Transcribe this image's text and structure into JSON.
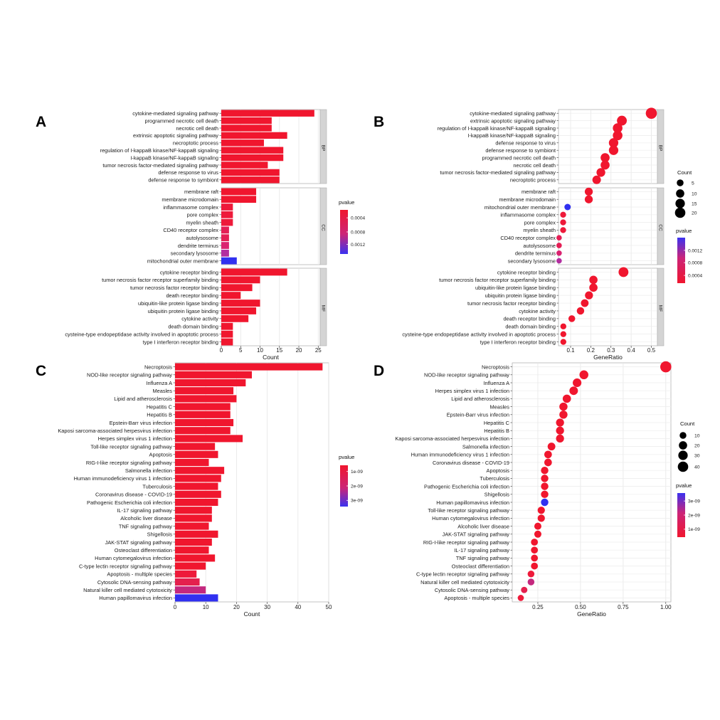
{
  "chart_data": [
    {
      "panel": "A",
      "type": "bar",
      "orientation": "horizontal",
      "xlabel": "Count",
      "xlim": [
        0,
        25.5
      ],
      "xticks": [
        0,
        5,
        10,
        15,
        20,
        25
      ],
      "legend": {
        "title": "pvalue",
        "labels": [
          "0.0004",
          "0.0008",
          "0.0012"
        ],
        "position": "right"
      },
      "facets": [
        {
          "name": "BP",
          "categories": [
            "cytokine-mediated signaling pathway",
            "programmed necrotic cell death",
            "necrotic cell death",
            "extrinsic apoptotic signaling pathway",
            "necroptotic process",
            "regulation of I-kappaB kinase/NF-kappaB signaling",
            "I-kappaB kinase/NF-kappaB signaling",
            "tumor necrosis factor-mediated signaling pathway",
            "defense response to virus",
            "defense response to symbiont"
          ],
          "values": [
            24,
            13,
            13,
            17,
            11,
            16,
            16,
            12,
            15,
            15
          ],
          "color": [
            "#f0162e",
            "#f0162e",
            "#f0162e",
            "#f0162e",
            "#f0162e",
            "#f0162e",
            "#f0162e",
            "#f0162e",
            "#f0162e",
            "#f0162e"
          ]
        },
        {
          "name": "CC",
          "categories": [
            "membrane raft",
            "membrane microdomain",
            "inflammasome complex",
            "pore complex",
            "myelin sheath",
            "CD40 receptor complex",
            "autolysosome",
            "dendrite terminus",
            "secondary lysosome",
            "mitochondrial outer membrane"
          ],
          "values": [
            9,
            9,
            3,
            3,
            3,
            2,
            2,
            2,
            2,
            4
          ],
          "color": [
            "#f0162e",
            "#f0162e",
            "#ee1a3a",
            "#ee1a3a",
            "#ee1a3a",
            "#e41e55",
            "#e41e55",
            "#da2270",
            "#b22da0",
            "#3030f0"
          ]
        },
        {
          "name": "MF",
          "categories": [
            "cytokine receptor binding",
            "tumor necrosis factor receptor superfamily binding",
            "tumor necrosis factor receptor binding",
            "death receptor binding",
            "ubiquitin-like protein ligase binding",
            "ubiquitin protein ligase binding",
            "cytokine activity",
            "death domain binding",
            "cysteine-type endopeptidase activity involved in apoptotic process",
            "type I interferon receptor binding"
          ],
          "values": [
            17,
            10,
            8,
            5,
            10,
            9,
            7,
            3,
            3,
            3
          ],
          "color": [
            "#f0162e",
            "#f0162e",
            "#f0162e",
            "#f0162e",
            "#f0162e",
            "#f0162e",
            "#f0162e",
            "#f0162e",
            "#f0162e",
            "#f0162e"
          ]
        }
      ]
    },
    {
      "panel": "B",
      "type": "scatter",
      "xlabel": "GeneRatio",
      "xlim": [
        0.04,
        0.53
      ],
      "xticks": [
        0.1,
        0.2,
        0.3,
        0.4,
        0.5
      ],
      "xticklabels": [
        "0.1",
        "0.2",
        "0.3",
        "0.4",
        "0.5"
      ],
      "size_legend": {
        "title": "Count",
        "labels": [
          "5",
          "10",
          "15",
          "20"
        ]
      },
      "color_legend": {
        "title": "pvalue",
        "labels": [
          "0.0012",
          "0.0008",
          "0.0004"
        ]
      },
      "facets": [
        {
          "name": "BP",
          "categories": [
            "cytokine-mediated signaling pathway",
            "extrinsic apoptotic signaling pathway",
            "regulation of I-kappaB kinase/NF-kappaB signaling",
            "I-kappaB kinase/NF-kappaB signaling",
            "defense response to virus",
            "defense response to symbiont",
            "programmed necrotic cell death",
            "necrotic cell death",
            "tumor necrosis factor-mediated signaling pathway",
            "necroptotic process"
          ],
          "values": [
            0.5,
            0.354,
            0.333,
            0.333,
            0.313,
            0.313,
            0.271,
            0.271,
            0.25,
            0.229
          ],
          "counts": [
            24,
            17,
            16,
            16,
            15,
            15,
            13,
            13,
            12,
            11
          ],
          "color": [
            "#f0162e",
            "#f0162e",
            "#f0162e",
            "#f0162e",
            "#f0162e",
            "#f0162e",
            "#f0162e",
            "#f0162e",
            "#f0162e",
            "#f0162e"
          ]
        },
        {
          "name": "CC",
          "categories": [
            "membrane raft",
            "membrane microdomain",
            "mitochondrial outer membrane",
            "inflammasome complex",
            "pore complex",
            "myelin sheath",
            "CD40 receptor complex",
            "autolysosome",
            "dendrite terminus",
            "secondary lysosome"
          ],
          "values": [
            0.19,
            0.19,
            0.085,
            0.063,
            0.063,
            0.063,
            0.043,
            0.043,
            0.043,
            0.043
          ],
          "counts": [
            9,
            9,
            4,
            3,
            3,
            3,
            2,
            2,
            2,
            2
          ],
          "color": [
            "#f0162e",
            "#f0162e",
            "#3030f0",
            "#ee1a3a",
            "#ee1a3a",
            "#ee1a3a",
            "#e41e55",
            "#e41e55",
            "#da2270",
            "#b22da0"
          ]
        },
        {
          "name": "MF",
          "categories": [
            "cytokine receptor binding",
            "tumor necrosis factor receptor superfamily binding",
            "ubiquitin-like protein ligase binding",
            "ubiquitin protein ligase binding",
            "tumor necrosis factor receptor binding",
            "cytokine activity",
            "death receptor binding",
            "death domain binding",
            "cysteine-type endopeptidase activity involved in apoptotic process",
            "type I interferon receptor binding"
          ],
          "values": [
            0.362,
            0.213,
            0.213,
            0.191,
            0.17,
            0.149,
            0.106,
            0.064,
            0.064,
            0.064
          ],
          "counts": [
            17,
            10,
            10,
            9,
            8,
            7,
            5,
            3,
            3,
            3
          ],
          "color": [
            "#f0162e",
            "#f0162e",
            "#f0162e",
            "#f0162e",
            "#f0162e",
            "#f0162e",
            "#f0162e",
            "#f0162e",
            "#f0162e",
            "#f0162e"
          ]
        }
      ]
    },
    {
      "panel": "C",
      "type": "bar",
      "orientation": "horizontal",
      "xlabel": "Count",
      "xlim": [
        0,
        50
      ],
      "xticks": [
        0,
        10,
        20,
        30,
        40,
        50
      ],
      "legend": {
        "title": "pvalue",
        "labels": [
          "1e-09",
          "2e-09",
          "3e-09"
        ],
        "position": "right"
      },
      "facets": [
        {
          "name": "",
          "categories": [
            "Necroptosis",
            "NOD-like receptor signaling pathway",
            "Influenza A",
            "Measles",
            "Lipid and atherosclerosis",
            "Hepatitis C",
            "Hepatitis B",
            "Epstein-Barr virus infection",
            "Kaposi sarcoma-associated herpesvirus infection",
            "Herpes simplex virus 1 infection",
            "Toll-like receptor signaling pathway",
            "Apoptosis",
            "RIG-I-like receptor signaling pathway",
            "Salmonella infection",
            "Human immunodeficiency virus 1 infection",
            "Tuberculosis",
            "Coronavirus disease - COVID-19",
            "Pathogenic Escherichia coli infection",
            "IL-17 signaling pathway",
            "Alcoholic liver disease",
            "TNF signaling pathway",
            "Shigellosis",
            "JAK-STAT signaling pathway",
            "Osteoclast differentiation",
            "Human cytomegalovirus infection",
            "C-type lectin receptor signaling pathway",
            "Apoptosis - multiple species",
            "Cytosolic DNA-sensing pathway",
            "Natural killer cell mediated cytotoxicity",
            "Human papillomavirus infection"
          ],
          "values": [
            48,
            25,
            23,
            19,
            20,
            18,
            18,
            19,
            18,
            22,
            13,
            14,
            11,
            16,
            15,
            14,
            15,
            14,
            12,
            12,
            11,
            14,
            12,
            11,
            13,
            10,
            7,
            8,
            10,
            14
          ],
          "color": [
            "#f0162e",
            "#f0162e",
            "#f0162e",
            "#f0162e",
            "#f0162e",
            "#f0162e",
            "#f0162e",
            "#f0162e",
            "#f0162e",
            "#f0162e",
            "#f0162e",
            "#f0162e",
            "#f0162e",
            "#f0162e",
            "#f0162e",
            "#f0162e",
            "#f0162e",
            "#f0162e",
            "#f0162e",
            "#f0162e",
            "#f0162e",
            "#f0162e",
            "#f0162e",
            "#f0162e",
            "#f0162e",
            "#f0162e",
            "#ee1a3a",
            "#e4204e",
            "#c4287e",
            "#3030f0"
          ]
        }
      ]
    },
    {
      "panel": "D",
      "type": "scatter",
      "xlabel": "GeneRatio",
      "xlim": [
        0.1,
        1.03
      ],
      "xticks": [
        0.25,
        0.5,
        0.75,
        1.0
      ],
      "xticklabels": [
        "0.25",
        "0.50",
        "0.75",
        "1.00"
      ],
      "size_legend": {
        "title": "Count",
        "labels": [
          "10",
          "20",
          "30",
          "40"
        ]
      },
      "color_legend": {
        "title": "pvalue",
        "labels": [
          "3e-09",
          "2e-09",
          "1e-09"
        ]
      },
      "facets": [
        {
          "name": "",
          "categories": [
            "Necroptosis",
            "NOD-like receptor signaling pathway",
            "Influenza A",
            "Herpes simplex virus 1 infection",
            "Lipid and atherosclerosis",
            "Measles",
            "Epstein-Barr virus infection",
            "Hepatitis C",
            "Hepatitis B",
            "Kaposi sarcoma-associated herpesvirus infection",
            "Salmonella infection",
            "Human immunodeficiency virus 1 infection",
            "Coronavirus disease - COVID-19",
            "Apoptosis",
            "Tuberculosis",
            "Pathogenic Escherichia coli infection",
            "Shigellosis",
            "Human papillomavirus infection",
            "Toll-like receptor signaling pathway",
            "Human cytomegalovirus infection",
            "Alcoholic liver disease",
            "JAK-STAT signaling pathway",
            "RIG-I-like receptor signaling pathway",
            "IL-17 signaling pathway",
            "TNF signaling pathway",
            "Osteoclast differentiation",
            "C-type lectin receptor signaling pathway",
            "Natural killer cell mediated cytotoxicity",
            "Cytosolic DNA-sensing pathway",
            "Apoptosis - multiple species"
          ],
          "values": [
            1.0,
            0.52,
            0.48,
            0.46,
            0.42,
            0.4,
            0.4,
            0.38,
            0.38,
            0.38,
            0.33,
            0.31,
            0.31,
            0.29,
            0.29,
            0.29,
            0.29,
            0.29,
            0.27,
            0.27,
            0.25,
            0.25,
            0.23,
            0.23,
            0.23,
            0.23,
            0.21,
            0.21,
            0.17,
            0.15
          ],
          "counts": [
            48,
            25,
            23,
            22,
            20,
            19,
            19,
            18,
            18,
            18,
            16,
            15,
            15,
            14,
            14,
            14,
            14,
            14,
            13,
            13,
            12,
            12,
            11,
            11,
            11,
            11,
            10,
            10,
            8,
            7
          ],
          "color": [
            "#f0162e",
            "#f0162e",
            "#f0162e",
            "#f0162e",
            "#f0162e",
            "#f0162e",
            "#f0162e",
            "#f0162e",
            "#f0162e",
            "#f0162e",
            "#f0162e",
            "#f0162e",
            "#f0162e",
            "#f0162e",
            "#f0162e",
            "#f0162e",
            "#f0162e",
            "#3030f0",
            "#f0162e",
            "#f0162e",
            "#f0162e",
            "#f0162e",
            "#f0162e",
            "#f0162e",
            "#f0162e",
            "#f0162e",
            "#ee1a3a",
            "#c4287e",
            "#e4204e",
            "#ee1a3a"
          ]
        }
      ]
    }
  ]
}
